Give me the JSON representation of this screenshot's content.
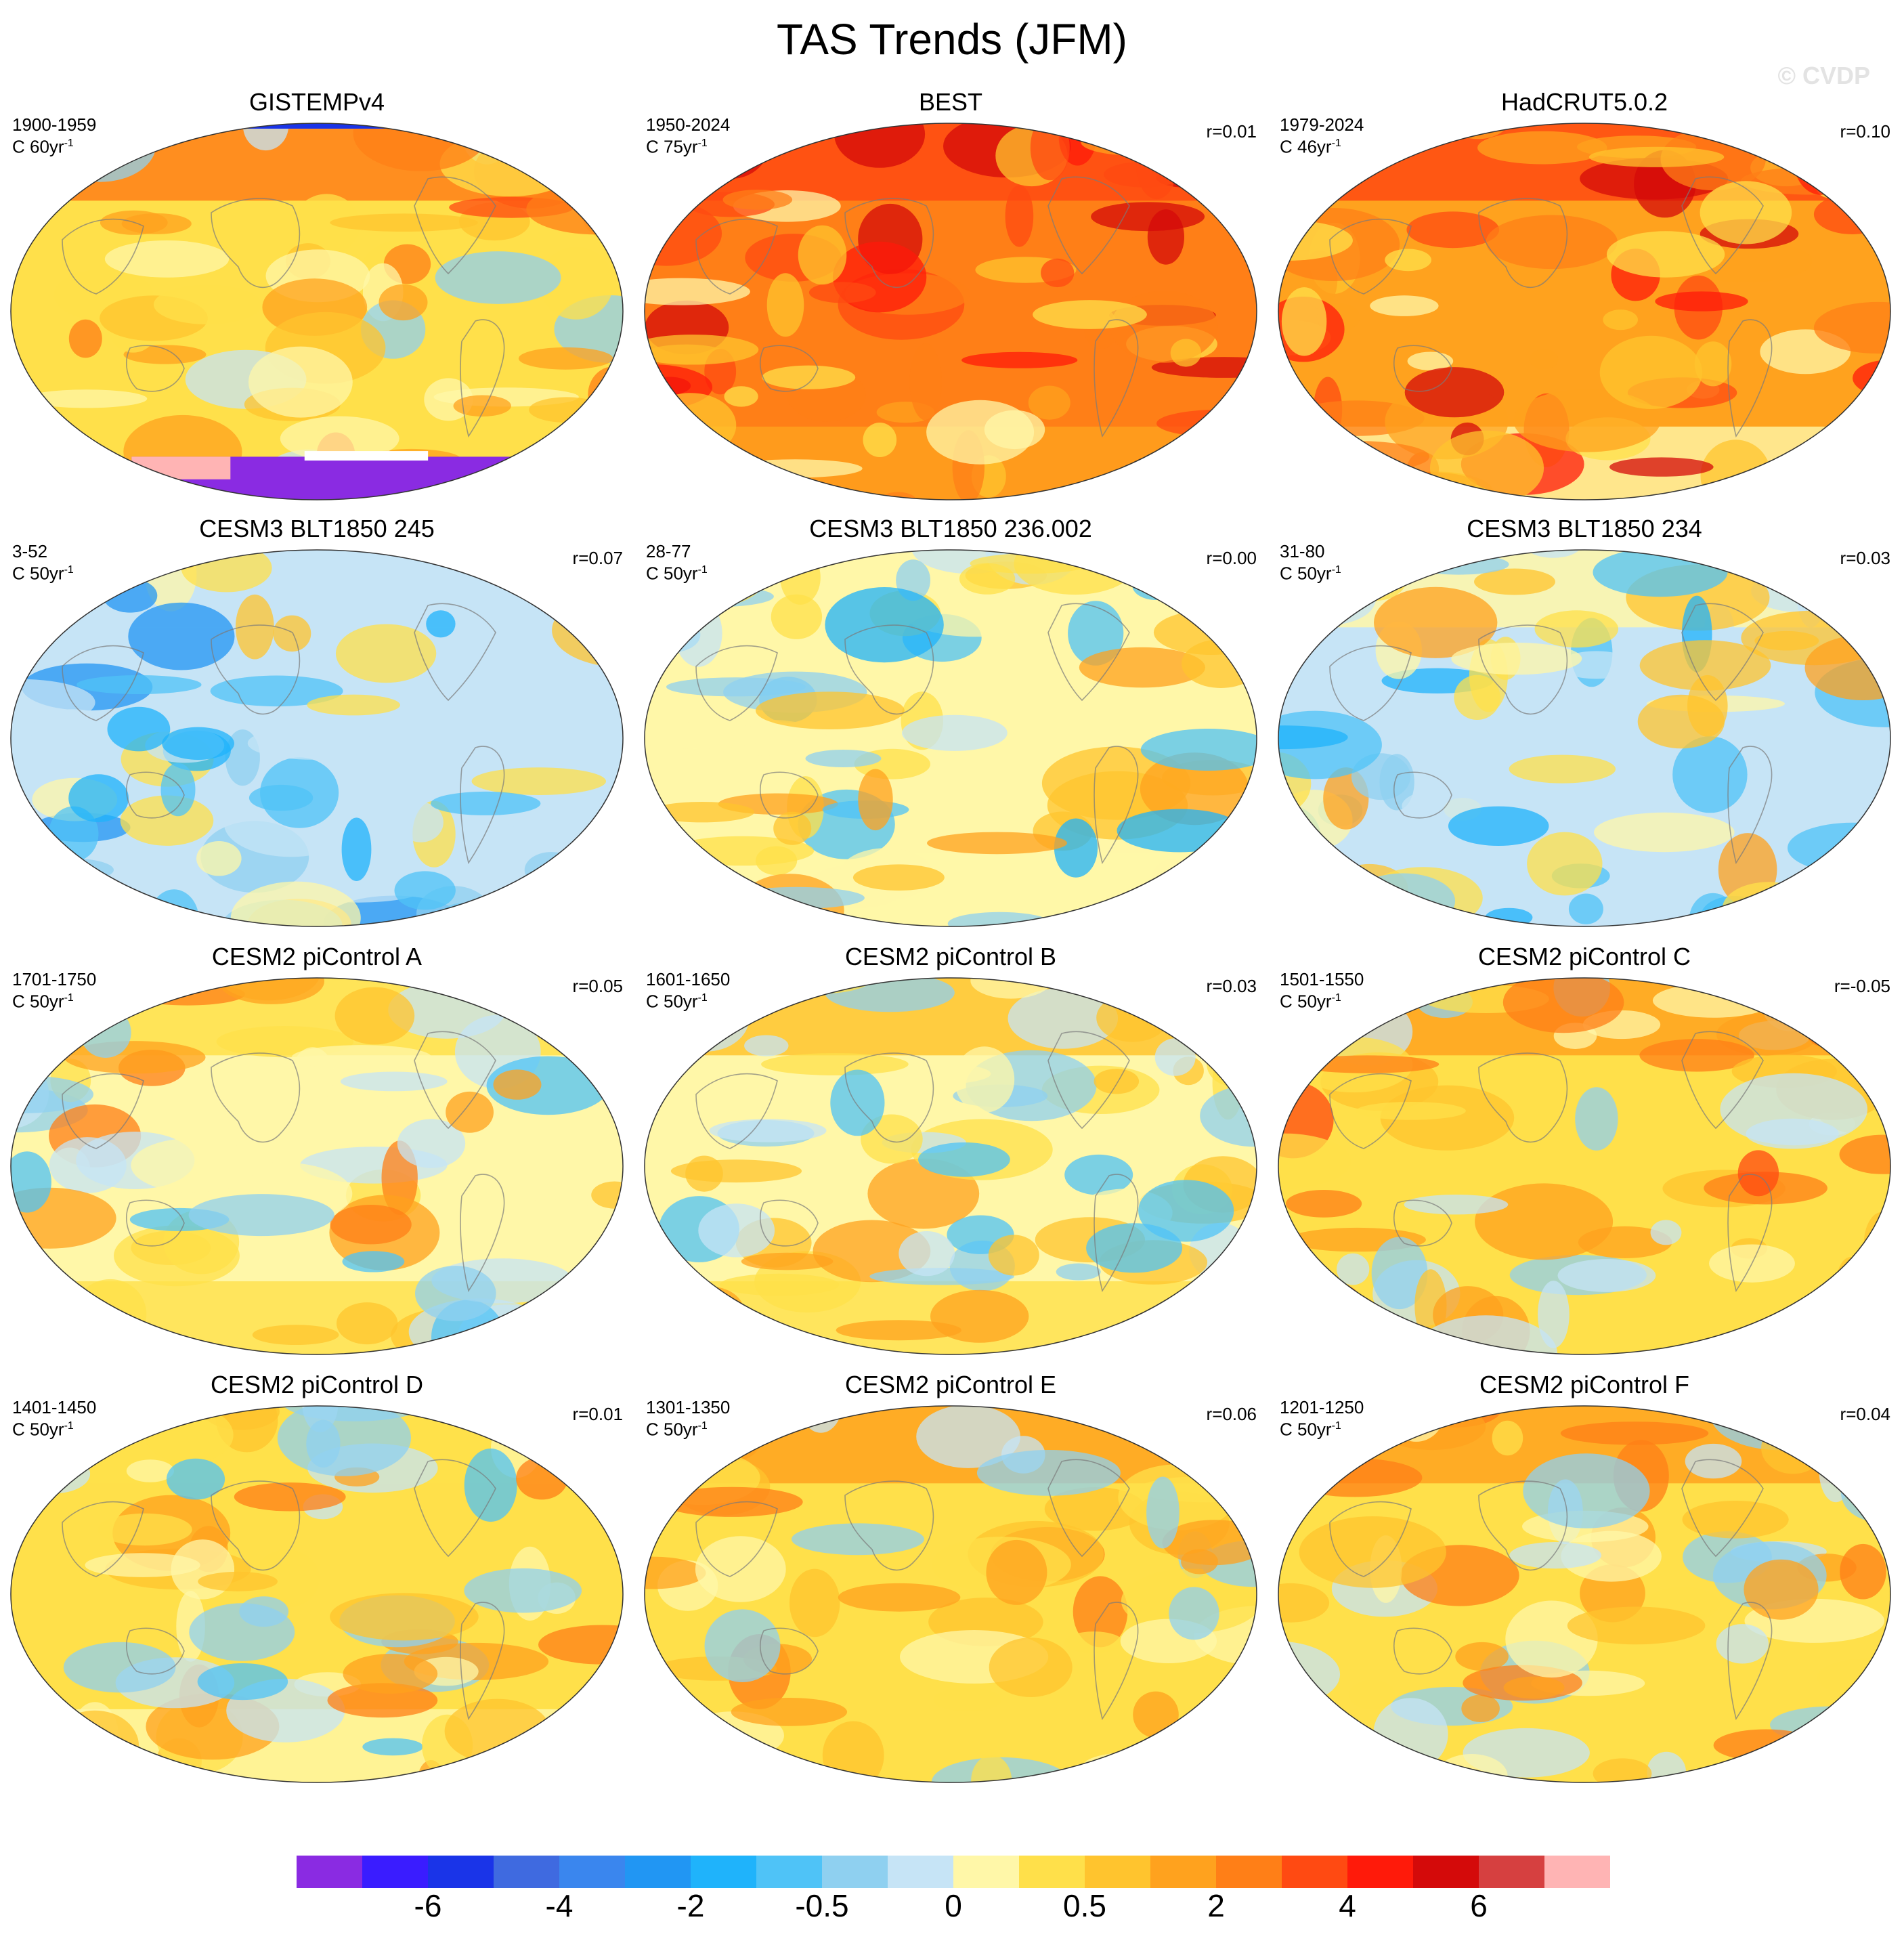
{
  "figure": {
    "title": "TAS Trends (JFM)",
    "watermark": "© CVDP"
  },
  "colors": {
    "bins": [
      "#8a2be2",
      "#3a1cff",
      "#1a34e8",
      "#3f6ae0",
      "#3a86ee",
      "#2196f3",
      "#1fb3fb",
      "#4fc3f7",
      "#8fd0f0",
      "#c6e4f6",
      "#fff7a8",
      "#ffe04a",
      "#ffc42e",
      "#ffa21e",
      "#ff7f17",
      "#ff4a12",
      "#ff1a0a",
      "#d40a0a",
      "#d64040",
      "#ffb4b4"
    ],
    "land_outline": "#7b7b7b",
    "missing": "#ffffff"
  },
  "colorbar": {
    "labels": [
      "-6",
      "-4",
      "-2",
      "-0.5",
      "0",
      "0.5",
      "2",
      "4",
      "6"
    ]
  },
  "panels": [
    {
      "title": "GISTEMPv4",
      "period": "1900-1959",
      "units": "C 60yr",
      "corr": "",
      "base_level": 0.55,
      "north_level": 0.9,
      "south_level": 0.5,
      "seed": 11,
      "mask": "gistemp"
    },
    {
      "title": "BEST",
      "period": "1950-2024",
      "units": "C 75yr",
      "corr": "r=0.01",
      "base_level": 0.85,
      "north_level": 1.0,
      "south_level": 0.78,
      "seed": 23,
      "mask": "none"
    },
    {
      "title": "HadCRUT5.0.2",
      "period": "1979-2024",
      "units": "C 46yr",
      "corr": "r=0.10",
      "base_level": 0.8,
      "north_level": 1.0,
      "south_level": 0.35,
      "seed": 37,
      "mask": "none"
    },
    {
      "title": "CESM3 BLT1850 245",
      "period": "3-52",
      "units": "C 50yr",
      "corr": "r=0.07",
      "base_level": 0.22,
      "north_level": 0.3,
      "south_level": 0.2,
      "seed": 41,
      "mask": "none"
    },
    {
      "title": "CESM3 BLT1850 236.002",
      "period": "28-77",
      "units": "C 50yr",
      "corr": "r=0.00",
      "base_level": 0.35,
      "north_level": 0.4,
      "south_level": 0.35,
      "seed": 53,
      "mask": "none"
    },
    {
      "title": "CESM3 BLT1850 234",
      "period": "31-80",
      "units": "C 50yr",
      "corr": "r=0.03",
      "base_level": 0.3,
      "north_level": 0.35,
      "south_level": 0.3,
      "seed": 67,
      "mask": "none"
    },
    {
      "title": "CESM2 piControl A",
      "period": "1701-1750",
      "units": "C 50yr",
      "corr": "r=0.05",
      "base_level": 0.42,
      "north_level": 0.55,
      "south_level": 0.45,
      "seed": 71,
      "mask": "none"
    },
    {
      "title": "CESM2 piControl B",
      "period": "1601-1650",
      "units": "C 50yr",
      "corr": "r=0.03",
      "base_level": 0.38,
      "north_level": 0.6,
      "south_level": 0.45,
      "seed": 83,
      "mask": "none"
    },
    {
      "title": "CESM2 piControl C",
      "period": "1501-1550",
      "units": "C 50yr",
      "corr": "r=-0.05",
      "base_level": 0.5,
      "north_level": 0.8,
      "south_level": 0.5,
      "seed": 97,
      "mask": "none"
    },
    {
      "title": "CESM2 piControl D",
      "period": "1401-1450",
      "units": "C 50yr",
      "corr": "r=0.01",
      "base_level": 0.45,
      "north_level": 0.55,
      "south_level": 0.4,
      "seed": 101,
      "mask": "none"
    },
    {
      "title": "CESM2 piControl E",
      "period": "1301-1350",
      "units": "C 50yr",
      "corr": "r=0.06",
      "base_level": 0.5,
      "north_level": 0.75,
      "south_level": 0.5,
      "seed": 113,
      "mask": "none"
    },
    {
      "title": "CESM2 piControl F",
      "period": "1201-1250",
      "units": "C 50yr",
      "corr": "r=0.04",
      "base_level": 0.52,
      "north_level": 0.7,
      "south_level": 0.5,
      "seed": 127,
      "mask": "none"
    }
  ]
}
